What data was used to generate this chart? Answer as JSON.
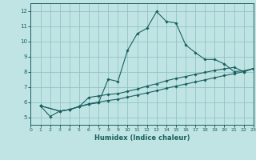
{
  "xlabel": "Humidex (Indice chaleur)",
  "xlim": [
    0,
    23
  ],
  "ylim": [
    4.5,
    12.5
  ],
  "xticks": [
    0,
    1,
    2,
    3,
    4,
    5,
    6,
    7,
    8,
    9,
    10,
    11,
    12,
    13,
    14,
    15,
    16,
    17,
    18,
    19,
    20,
    21,
    22,
    23
  ],
  "yticks": [
    5,
    6,
    7,
    8,
    9,
    10,
    11,
    12
  ],
  "bg_color": "#c0e4e4",
  "grid_color": "#90c4c4",
  "line_color": "#1a6060",
  "line1_x": [
    1,
    2,
    3,
    4,
    5,
    6,
    7,
    8,
    9,
    10,
    11,
    12,
    13,
    14,
    15,
    16,
    17,
    18,
    19,
    20,
    21,
    22,
    23
  ],
  "line1_y": [
    5.75,
    5.05,
    5.4,
    5.5,
    5.7,
    5.85,
    5.95,
    7.5,
    7.35,
    9.4,
    10.5,
    10.85,
    11.95,
    11.3,
    11.2,
    9.75,
    9.25,
    8.8,
    8.8,
    8.5,
    8.0,
    8.05,
    8.2
  ],
  "line2_x": [
    1,
    3,
    4,
    5,
    6,
    7,
    8,
    9,
    10,
    11,
    12,
    13,
    14,
    15,
    16,
    17,
    18,
    19,
    20,
    21,
    22,
    23
  ],
  "line2_y": [
    5.75,
    5.4,
    5.5,
    5.7,
    6.3,
    6.4,
    6.5,
    6.55,
    6.7,
    6.85,
    7.05,
    7.2,
    7.4,
    7.55,
    7.68,
    7.82,
    7.95,
    8.08,
    8.18,
    8.28,
    8.0,
    8.2
  ],
  "line3_x": [
    1,
    3,
    4,
    5,
    6,
    7,
    8,
    9,
    10,
    11,
    12,
    13,
    14,
    15,
    16,
    17,
    18,
    19,
    20,
    21,
    22,
    23
  ],
  "line3_y": [
    5.75,
    5.4,
    5.5,
    5.7,
    5.88,
    6.0,
    6.1,
    6.18,
    6.32,
    6.46,
    6.6,
    6.74,
    6.9,
    7.05,
    7.18,
    7.32,
    7.46,
    7.6,
    7.74,
    7.86,
    8.0,
    8.2
  ]
}
